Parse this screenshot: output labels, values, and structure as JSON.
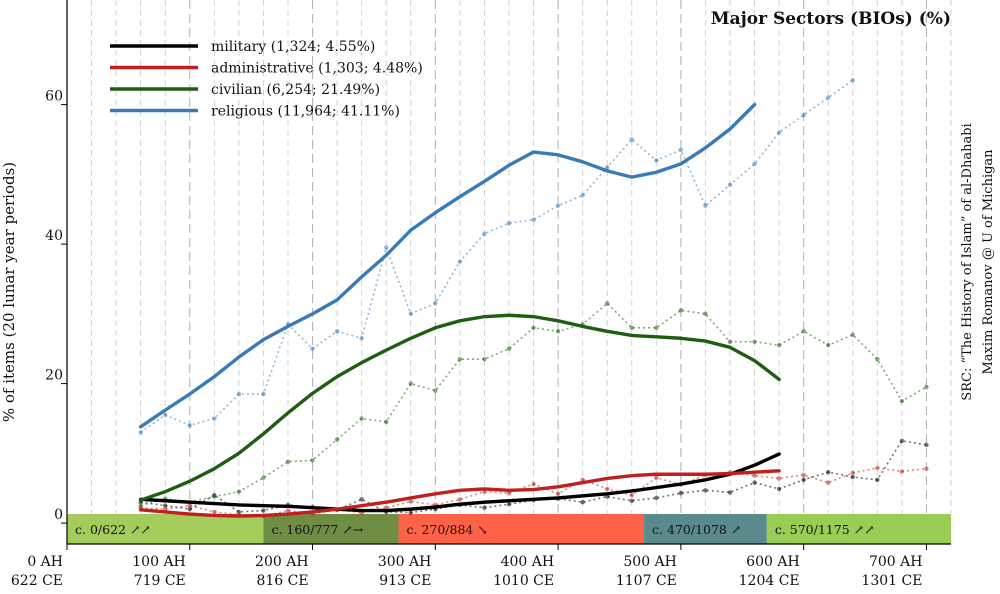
{
  "chart_data": {
    "type": "line",
    "title": "Major Sectors (BIOs) (%)",
    "ylabel": "% of items (20 lunar year periods)",
    "xlabel": "",
    "source_lines": [
      "SRC: “The History of Islam” of al-Dhahabi",
      "Maxim Romanov @ U of Michigan"
    ],
    "xlim": [
      0,
      720
    ],
    "ylim": [
      -3,
      75
    ],
    "y_ticks": [
      0,
      20,
      40,
      60
    ],
    "x_ticks": [
      {
        "x": 0,
        "ah": "0 AH",
        "ce": "622 CE"
      },
      {
        "x": 100,
        "ah": "100 AH",
        "ce": "719 CE"
      },
      {
        "x": 200,
        "ah": "200 AH",
        "ce": "816 CE"
      },
      {
        "x": 300,
        "ah": "300 AH",
        "ce": "913 CE"
      },
      {
        "x": 400,
        "ah": "400 AH",
        "ce": "1010 CE"
      },
      {
        "x": 500,
        "ah": "500 AH",
        "ce": "1107 CE"
      },
      {
        "x": 600,
        "ah": "600 AH",
        "ce": "1204 CE"
      },
      {
        "x": 700,
        "ah": "700 AH",
        "ce": "1301 CE"
      }
    ],
    "vgrid_step": 20,
    "legend_position": "top-left",
    "periods": [
      {
        "label": "c. 0/622 ↗↗",
        "start": 0,
        "end": 160,
        "color": "#a3cc5a"
      },
      {
        "label": "c. 160/777 ↗→",
        "start": 160,
        "end": 270,
        "color": "#6f8e44"
      },
      {
        "label": "c. 270/884 ↘",
        "start": 270,
        "end": 470,
        "color": "#ff6347"
      },
      {
        "label": "c. 470/1078 ↗",
        "start": 470,
        "end": 570,
        "color": "#5b8a8d"
      },
      {
        "label": "c. 570/1175 ↗↗",
        "start": 570,
        "end": 720,
        "color": "#9acd55"
      }
    ],
    "series": [
      {
        "name": "military (1,324; 4.55%)",
        "color": "#000000",
        "raw": [
          [
            60,
            3.0
          ],
          [
            80,
            2.5
          ],
          [
            100,
            2.0
          ],
          [
            120,
            4.0
          ],
          [
            140,
            1.6
          ],
          [
            160,
            1.8
          ],
          [
            180,
            2.6
          ],
          [
            200,
            2.3
          ],
          [
            220,
            1.9
          ],
          [
            240,
            3.4
          ],
          [
            260,
            1.6
          ],
          [
            280,
            1.5
          ],
          [
            300,
            2.0
          ],
          [
            320,
            2.6
          ],
          [
            340,
            2.2
          ],
          [
            360,
            2.7
          ],
          [
            380,
            3.3
          ],
          [
            400,
            3.5
          ],
          [
            420,
            3.0
          ],
          [
            440,
            3.8
          ],
          [
            460,
            3.2
          ],
          [
            480,
            3.6
          ],
          [
            500,
            4.3
          ],
          [
            520,
            4.7
          ],
          [
            540,
            4.4
          ],
          [
            560,
            5.8
          ],
          [
            580,
            4.9
          ],
          [
            600,
            6.2
          ],
          [
            620,
            7.3
          ],
          [
            640,
            6.6
          ],
          [
            660,
            6.2
          ],
          [
            680,
            11.8
          ],
          [
            700,
            11.2
          ]
        ],
        "smooth": [
          [
            60,
            3.4
          ],
          [
            80,
            3.2
          ],
          [
            100,
            3.0
          ],
          [
            120,
            2.8
          ],
          [
            140,
            2.6
          ],
          [
            160,
            2.5
          ],
          [
            180,
            2.4
          ],
          [
            200,
            2.2
          ],
          [
            220,
            2.0
          ],
          [
            240,
            1.8
          ],
          [
            260,
            1.8
          ],
          [
            280,
            2.0
          ],
          [
            300,
            2.3
          ],
          [
            320,
            2.7
          ],
          [
            340,
            3.0
          ],
          [
            360,
            3.2
          ],
          [
            380,
            3.4
          ],
          [
            400,
            3.6
          ],
          [
            420,
            3.9
          ],
          [
            440,
            4.2
          ],
          [
            460,
            4.6
          ],
          [
            480,
            5.1
          ],
          [
            500,
            5.6
          ],
          [
            520,
            6.2
          ],
          [
            540,
            7.0
          ],
          [
            560,
            8.3
          ],
          [
            580,
            9.9
          ]
        ]
      },
      {
        "name": "administrative (1,303; 4.48%)",
        "color": "#c0201e",
        "raw": [
          [
            60,
            2.2
          ],
          [
            80,
            2.0
          ],
          [
            100,
            2.5
          ],
          [
            120,
            1.6
          ],
          [
            140,
            1.2
          ],
          [
            160,
            1.0
          ],
          [
            180,
            1.8
          ],
          [
            200,
            1.3
          ],
          [
            220,
            1.9
          ],
          [
            240,
            1.5
          ],
          [
            260,
            2.2
          ],
          [
            280,
            3.1
          ],
          [
            300,
            2.6
          ],
          [
            320,
            3.4
          ],
          [
            340,
            4.5
          ],
          [
            360,
            4.3
          ],
          [
            380,
            5.6
          ],
          [
            400,
            4.2
          ],
          [
            420,
            6.2
          ],
          [
            440,
            4.9
          ],
          [
            460,
            4.0
          ],
          [
            480,
            6.5
          ],
          [
            500,
            5.5
          ],
          [
            520,
            6.9
          ],
          [
            540,
            7.3
          ],
          [
            560,
            6.8
          ],
          [
            580,
            6.4
          ],
          [
            600,
            6.9
          ],
          [
            620,
            5.8
          ],
          [
            640,
            7.2
          ],
          [
            660,
            7.9
          ],
          [
            680,
            7.4
          ],
          [
            700,
            7.8
          ]
        ],
        "smooth": [
          [
            60,
            1.9
          ],
          [
            80,
            1.6
          ],
          [
            100,
            1.3
          ],
          [
            120,
            1.1
          ],
          [
            140,
            1.0
          ],
          [
            160,
            1.1
          ],
          [
            180,
            1.3
          ],
          [
            200,
            1.6
          ],
          [
            220,
            2.0
          ],
          [
            240,
            2.5
          ],
          [
            260,
            3.0
          ],
          [
            280,
            3.6
          ],
          [
            300,
            4.2
          ],
          [
            320,
            4.7
          ],
          [
            340,
            4.9
          ],
          [
            360,
            4.7
          ],
          [
            380,
            4.8
          ],
          [
            400,
            5.2
          ],
          [
            420,
            5.8
          ],
          [
            440,
            6.4
          ],
          [
            460,
            6.8
          ],
          [
            480,
            7.0
          ],
          [
            500,
            7.0
          ],
          [
            520,
            7.0
          ],
          [
            540,
            7.1
          ],
          [
            560,
            7.3
          ],
          [
            580,
            7.5
          ]
        ]
      },
      {
        "name": "civilian (6,254; 21.49%)",
        "color": "#1f5e12",
        "raw": [
          [
            60,
            2.5
          ],
          [
            80,
            3.5
          ],
          [
            100,
            3.0
          ],
          [
            120,
            3.8
          ],
          [
            140,
            4.5
          ],
          [
            160,
            6.5
          ],
          [
            180,
            8.8
          ],
          [
            200,
            9.0
          ],
          [
            220,
            12.0
          ],
          [
            240,
            15.0
          ],
          [
            260,
            14.5
          ],
          [
            280,
            20.0
          ],
          [
            300,
            19.0
          ],
          [
            320,
            23.5
          ],
          [
            340,
            23.5
          ],
          [
            360,
            25.0
          ],
          [
            380,
            28.0
          ],
          [
            400,
            27.5
          ],
          [
            420,
            28.5
          ],
          [
            440,
            31.5
          ],
          [
            460,
            28.0
          ],
          [
            480,
            28.0
          ],
          [
            500,
            30.5
          ],
          [
            520,
            30.0
          ],
          [
            540,
            26.0
          ],
          [
            560,
            26.0
          ],
          [
            580,
            25.5
          ],
          [
            600,
            27.5
          ],
          [
            620,
            25.5
          ],
          [
            640,
            27.0
          ],
          [
            660,
            23.5
          ],
          [
            680,
            17.5
          ],
          [
            700,
            19.5
          ]
        ],
        "smooth": [
          [
            60,
            3.3
          ],
          [
            80,
            4.5
          ],
          [
            100,
            6.0
          ],
          [
            120,
            7.8
          ],
          [
            140,
            10.0
          ],
          [
            160,
            12.8
          ],
          [
            180,
            15.8
          ],
          [
            200,
            18.6
          ],
          [
            220,
            21.0
          ],
          [
            240,
            23.0
          ],
          [
            260,
            24.8
          ],
          [
            280,
            26.5
          ],
          [
            300,
            28.0
          ],
          [
            320,
            29.0
          ],
          [
            340,
            29.6
          ],
          [
            360,
            29.8
          ],
          [
            380,
            29.6
          ],
          [
            400,
            29.0
          ],
          [
            420,
            28.2
          ],
          [
            440,
            27.5
          ],
          [
            460,
            26.9
          ],
          [
            480,
            26.7
          ],
          [
            500,
            26.5
          ],
          [
            520,
            26.1
          ],
          [
            540,
            25.2
          ],
          [
            560,
            23.3
          ],
          [
            580,
            20.6
          ]
        ]
      },
      {
        "name": "religious (11,964; 41.11%)",
        "color": "#3a7bb6",
        "raw": [
          [
            60,
            13.0
          ],
          [
            80,
            15.5
          ],
          [
            100,
            14.0
          ],
          [
            120,
            15.0
          ],
          [
            140,
            18.5
          ],
          [
            160,
            18.5
          ],
          [
            180,
            28.5
          ],
          [
            200,
            25.0
          ],
          [
            220,
            27.5
          ],
          [
            240,
            26.5
          ],
          [
            260,
            39.5
          ],
          [
            280,
            30.0
          ],
          [
            300,
            31.5
          ],
          [
            320,
            37.5
          ],
          [
            340,
            41.5
          ],
          [
            360,
            43.0
          ],
          [
            380,
            43.5
          ],
          [
            400,
            45.5
          ],
          [
            420,
            47.0
          ],
          [
            440,
            51.0
          ],
          [
            460,
            55.0
          ],
          [
            480,
            52.0
          ],
          [
            500,
            53.5
          ],
          [
            520,
            45.5
          ],
          [
            540,
            48.5
          ],
          [
            560,
            51.5
          ],
          [
            580,
            56.0
          ],
          [
            600,
            58.5
          ],
          [
            620,
            61.0
          ],
          [
            640,
            63.5
          ]
        ],
        "smooth": [
          [
            60,
            13.8
          ],
          [
            80,
            16.2
          ],
          [
            100,
            18.5
          ],
          [
            120,
            21.0
          ],
          [
            140,
            23.8
          ],
          [
            160,
            26.3
          ],
          [
            180,
            28.2
          ],
          [
            200,
            30.0
          ],
          [
            220,
            32.0
          ],
          [
            240,
            35.3
          ],
          [
            260,
            38.4
          ],
          [
            280,
            42.0
          ],
          [
            300,
            44.5
          ],
          [
            320,
            46.8
          ],
          [
            340,
            49.0
          ],
          [
            360,
            51.3
          ],
          [
            380,
            53.2
          ],
          [
            400,
            52.8
          ],
          [
            420,
            51.8
          ],
          [
            440,
            50.5
          ],
          [
            460,
            49.6
          ],
          [
            480,
            50.3
          ],
          [
            500,
            51.5
          ],
          [
            520,
            53.8
          ],
          [
            540,
            56.5
          ],
          [
            560,
            60.0
          ]
        ]
      }
    ]
  }
}
